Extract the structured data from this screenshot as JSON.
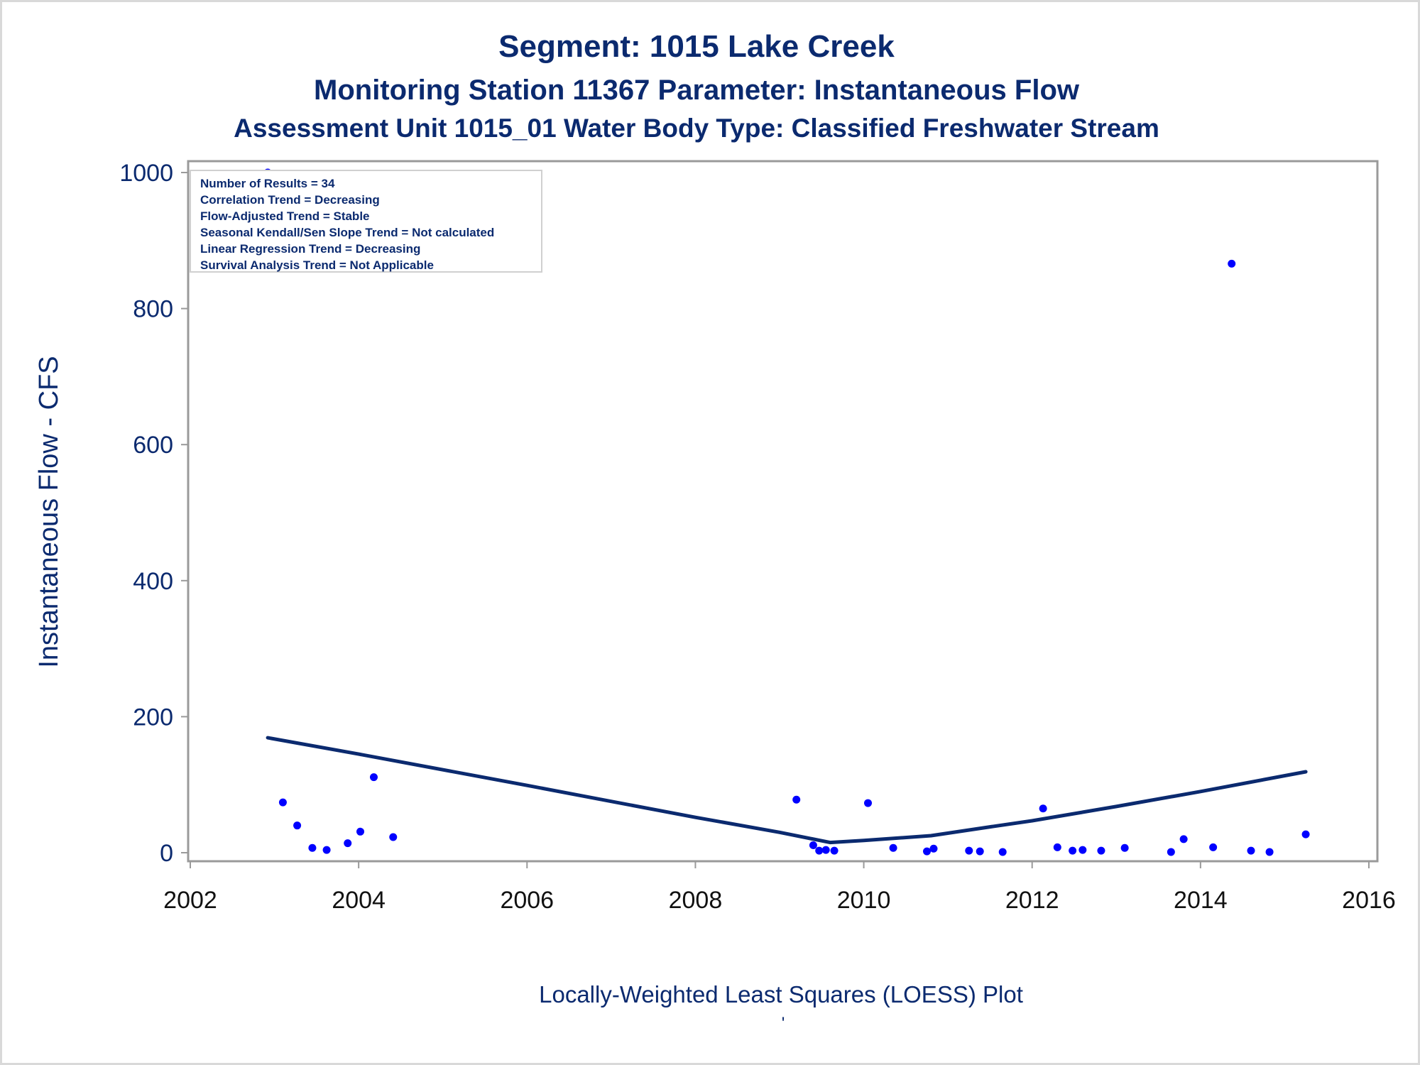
{
  "titles": {
    "line1": "Segment: 1015  Lake Creek",
    "line2": "Monitoring Station 11367 Parameter: Instantaneous Flow",
    "line3": "Assessment Unit 1015_01   Water Body Type: Classified Freshwater Stream"
  },
  "stats_box": [
    "Number of Results = 34",
    "Correlation Trend = Decreasing",
    "Flow-Adjusted Trend = Stable",
    "Seasonal Kendall/Sen Slope Trend = Not calculated",
    "Linear Regression Trend = Decreasing",
    "Survival Analysis Trend = Not Applicable"
  ],
  "footnote": "Locally-Weighted Least Squares (LOESS) Plot",
  "footnote_mark": "'",
  "colors": {
    "text": "#0b2a6f",
    "points": "#0000ff",
    "loess": "#0b2a6f",
    "x_ticks": "#111111",
    "frame": "#9a9a9a"
  },
  "chart_data": {
    "type": "scatter",
    "xlabel": "",
    "ylabel": "Instantaneous Flow - CFS",
    "xlim": [
      2002,
      2016
    ],
    "ylim": [
      0,
      1000
    ],
    "x_ticks": [
      "2002",
      "2004",
      "2006",
      "2008",
      "2010",
      "2012",
      "2014",
      "2016"
    ],
    "y_ticks": [
      "0",
      "200",
      "400",
      "600",
      "800",
      "1000"
    ],
    "grid": false,
    "legend_position": "top-left",
    "points": [
      {
        "x": 2002.92,
        "y": 1000
      },
      {
        "x": 2003.1,
        "y": 74
      },
      {
        "x": 2003.27,
        "y": 40
      },
      {
        "x": 2003.45,
        "y": 7
      },
      {
        "x": 2003.62,
        "y": 4
      },
      {
        "x": 2003.87,
        "y": 14
      },
      {
        "x": 2004.02,
        "y": 31
      },
      {
        "x": 2004.18,
        "y": 111
      },
      {
        "x": 2004.41,
        "y": 23
      },
      {
        "x": 2009.2,
        "y": 78
      },
      {
        "x": 2009.4,
        "y": 11
      },
      {
        "x": 2009.47,
        "y": 3
      },
      {
        "x": 2009.55,
        "y": 4
      },
      {
        "x": 2009.65,
        "y": 3
      },
      {
        "x": 2010.05,
        "y": 73
      },
      {
        "x": 2010.35,
        "y": 7
      },
      {
        "x": 2010.75,
        "y": 2
      },
      {
        "x": 2010.83,
        "y": 6
      },
      {
        "x": 2011.25,
        "y": 3
      },
      {
        "x": 2011.38,
        "y": 2
      },
      {
        "x": 2011.65,
        "y": 1
      },
      {
        "x": 2012.13,
        "y": 65
      },
      {
        "x": 2012.3,
        "y": 8
      },
      {
        "x": 2012.48,
        "y": 3
      },
      {
        "x": 2012.6,
        "y": 4
      },
      {
        "x": 2012.82,
        "y": 3
      },
      {
        "x": 2013.1,
        "y": 7
      },
      {
        "x": 2013.65,
        "y": 1
      },
      {
        "x": 2013.8,
        "y": 20
      },
      {
        "x": 2014.15,
        "y": 8
      },
      {
        "x": 2014.37,
        "y": 866
      },
      {
        "x": 2014.6,
        "y": 3
      },
      {
        "x": 2014.82,
        "y": 1
      },
      {
        "x": 2015.25,
        "y": 27
      }
    ],
    "series": [
      {
        "values": [
          {
            "x": 2002.92,
            "y": 169
          },
          {
            "x": 2004.0,
            "y": 145
          },
          {
            "x": 2006.0,
            "y": 99
          },
          {
            "x": 2008.0,
            "y": 52
          },
          {
            "x": 2009.0,
            "y": 30
          },
          {
            "x": 2009.6,
            "y": 15
          },
          {
            "x": 2010.0,
            "y": 18
          },
          {
            "x": 2010.8,
            "y": 25
          },
          {
            "x": 2011.5,
            "y": 38
          },
          {
            "x": 2012.0,
            "y": 47
          },
          {
            "x": 2013.0,
            "y": 68
          },
          {
            "x": 2014.0,
            "y": 90
          },
          {
            "x": 2015.25,
            "y": 119
          }
        ]
      }
    ]
  }
}
